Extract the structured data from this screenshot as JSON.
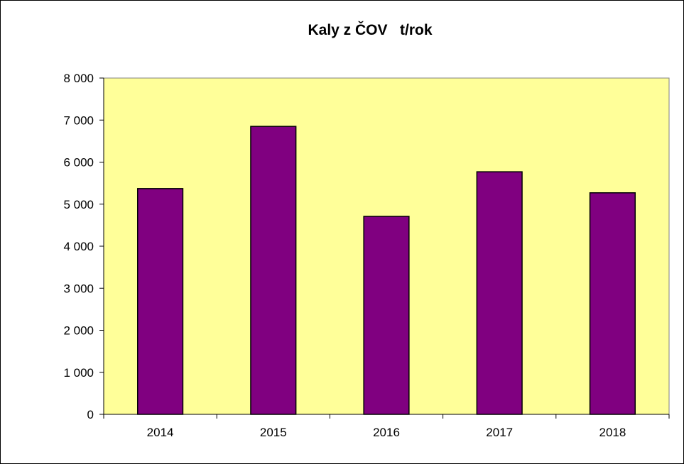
{
  "chart_data": {
    "type": "bar",
    "title": "Kaly z ČOV   t/rok",
    "xlabel": "",
    "ylabel": "",
    "categories": [
      "2014",
      "2015",
      "2016",
      "2017",
      "2018"
    ],
    "values": [
      5370,
      6850,
      4710,
      5770,
      5270
    ],
    "ylim": [
      0,
      8000
    ],
    "y_ticks": [
      0,
      1000,
      2000,
      3000,
      4000,
      5000,
      6000,
      7000,
      8000
    ],
    "y_tick_labels": [
      "0",
      "1 000",
      "2 000",
      "3 000",
      "4 000",
      "5 000",
      "6 000",
      "7 000",
      "8 000"
    ],
    "grid": false,
    "legend": "none",
    "colors": {
      "bar": "#800080",
      "plot_background": "#FFFF99",
      "axis": "#000000"
    }
  }
}
